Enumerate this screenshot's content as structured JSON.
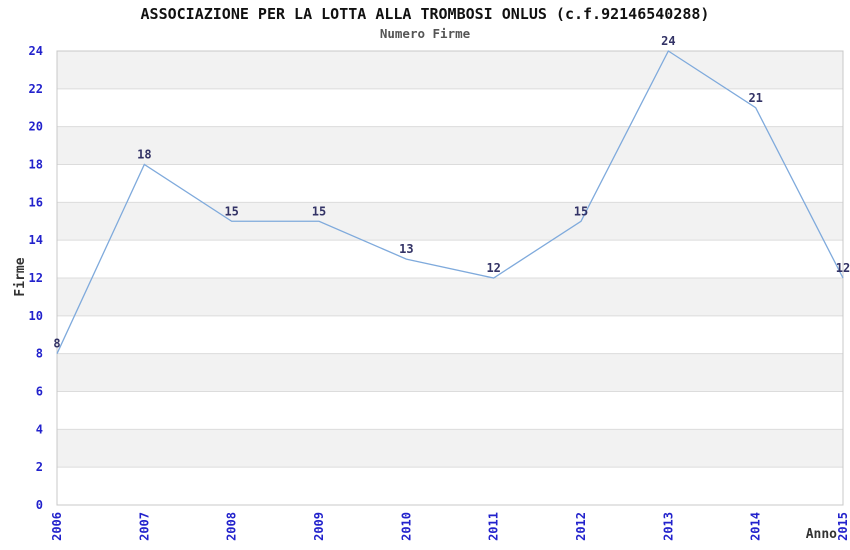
{
  "header": {
    "title": "ASSOCIAZIONE PER LA LOTTA ALLA TROMBOSI ONLUS (c.f.92146540288)",
    "subtitle": "Numero Firme"
  },
  "chart_data": {
    "type": "line",
    "title": "ASSOCIAZIONE PER LA LOTTA ALLA TROMBOSI ONLUS (c.f.92146540288)",
    "subtitle": "Numero Firme",
    "xlabel": "Anno",
    "ylabel": "Firme",
    "categories": [
      "2006",
      "2007",
      "2008",
      "2009",
      "2010",
      "2011",
      "2012",
      "2013",
      "2014",
      "2015"
    ],
    "series": [
      {
        "name": "Numero Firme",
        "values": [
          8,
          18,
          15,
          15,
          13,
          12,
          15,
          24,
          21,
          12
        ]
      }
    ],
    "ylim": [
      0,
      24
    ],
    "ytick_step": 2,
    "grid": "horizontal-bands-alternating",
    "legend": "none",
    "colors": {
      "line": "#7faadc",
      "tick_labels": "#2222cc",
      "data_labels": "#333366",
      "band": "#f2f2f2",
      "band_alt": "#ffffff",
      "gridline": "#dcdcdc",
      "frame": "#c8c8c8",
      "title": "#111111",
      "subtitle": "#555555",
      "axis_label": "#333333"
    }
  }
}
